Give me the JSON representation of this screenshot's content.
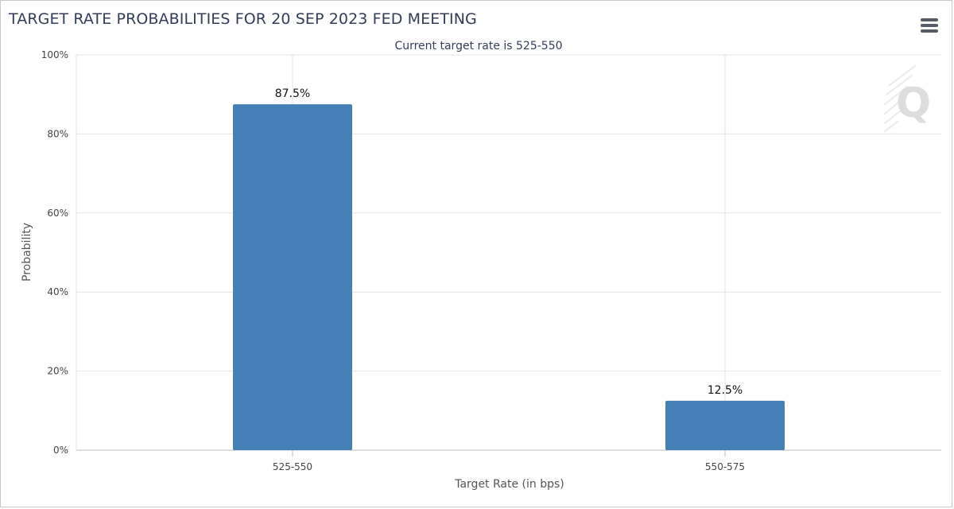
{
  "header": {
    "title": "TARGET RATE PROBABILITIES FOR 20 SEP 2023 FED MEETING",
    "menu_icon": "hamburger-menu-icon",
    "watermark_icon": "cme-q-logo-icon"
  },
  "chart_data": {
    "type": "bar",
    "title": "TARGET RATE PROBABILITIES FOR 20 SEP 2023 FED MEETING",
    "subtitle": "Current target rate is 525-550",
    "xlabel": "Target Rate (in bps)",
    "ylabel": "Probability",
    "categories": [
      "525-550",
      "550-575"
    ],
    "values": [
      87.5,
      12.5
    ],
    "data_labels": [
      "87.5%",
      "12.5%"
    ],
    "ylim": [
      0,
      100
    ],
    "yticks": [
      0,
      20,
      40,
      60,
      80,
      100
    ],
    "ytick_labels": [
      "0%",
      "20%",
      "40%",
      "60%",
      "80%",
      "100%"
    ],
    "bar_color": "#4480b5",
    "grid": true,
    "legend": "none"
  }
}
